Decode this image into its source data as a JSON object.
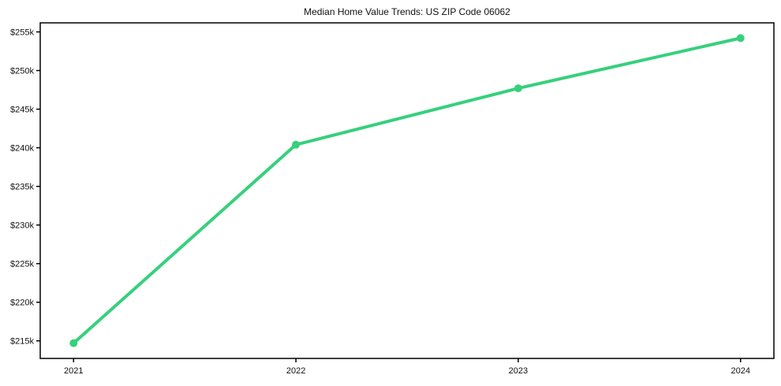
{
  "page": {
    "background": "#ffffff"
  },
  "chart_data": {
    "type": "line",
    "title": "Median Home Value Trends: US ZIP Code 06062",
    "xlabel": "",
    "ylabel": "",
    "x": [
      2021,
      2022,
      2023,
      2024
    ],
    "series": [
      {
        "name": "Median Home Value",
        "values": [
          214700,
          240400,
          247700,
          254200
        ]
      }
    ],
    "x_ticks": [
      {
        "value": 2021,
        "label": "2021"
      },
      {
        "value": 2022,
        "label": "2022"
      },
      {
        "value": 2023,
        "label": "2023"
      },
      {
        "value": 2024,
        "label": "2024"
      }
    ],
    "y_ticks": [
      {
        "value": 215000,
        "label": "$215k"
      },
      {
        "value": 220000,
        "label": "$220k"
      },
      {
        "value": 225000,
        "label": "$225k"
      },
      {
        "value": 230000,
        "label": "$230k"
      },
      {
        "value": 235000,
        "label": "$235k"
      },
      {
        "value": 240000,
        "label": "$240k"
      },
      {
        "value": 245000,
        "label": "$245k"
      },
      {
        "value": 250000,
        "label": "$250k"
      },
      {
        "value": 255000,
        "label": "$255k"
      }
    ],
    "xlim": [
      2020.85,
      2024.15
    ],
    "ylim": [
      212725,
      256175
    ],
    "grid": false,
    "legend_position": "none",
    "line_color": "#36d07c",
    "marker": "circle",
    "marker_radius": 5,
    "line_width": 4,
    "axis_color": "#000000",
    "tick_label_color": "#111111",
    "background": "#ffffff"
  }
}
